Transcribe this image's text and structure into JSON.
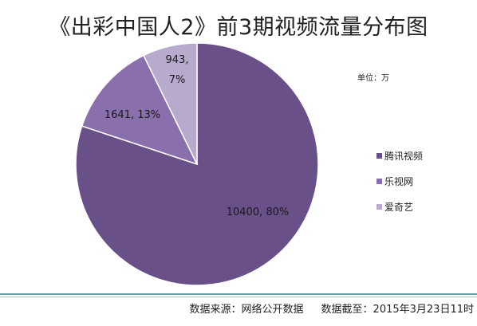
{
  "title": "《出彩中国人2》前3期视频流量分布图",
  "unit": "单位：万",
  "chart_data": {
    "type": "pie",
    "title": "《出彩中国人2》前3期视频流量分布图",
    "categories": [
      "腾讯视频",
      "乐视网",
      "爱奇艺"
    ],
    "values": [
      10400,
      1641,
      943
    ],
    "percent_labels": [
      "80%",
      "13%",
      "7%"
    ],
    "data_labels": [
      "10400, 80%",
      "1641, 13%",
      [
        "943,",
        "7%"
      ]
    ],
    "colors": [
      "#6a5089",
      "#8a6fad",
      "#b8aacc"
    ],
    "start": "12 o'clock, clockwise",
    "legend_position": "right"
  },
  "footer": {
    "source": "数据来源：网络公开数据",
    "cutoff": "数据截至：2015年3月23日11时"
  }
}
